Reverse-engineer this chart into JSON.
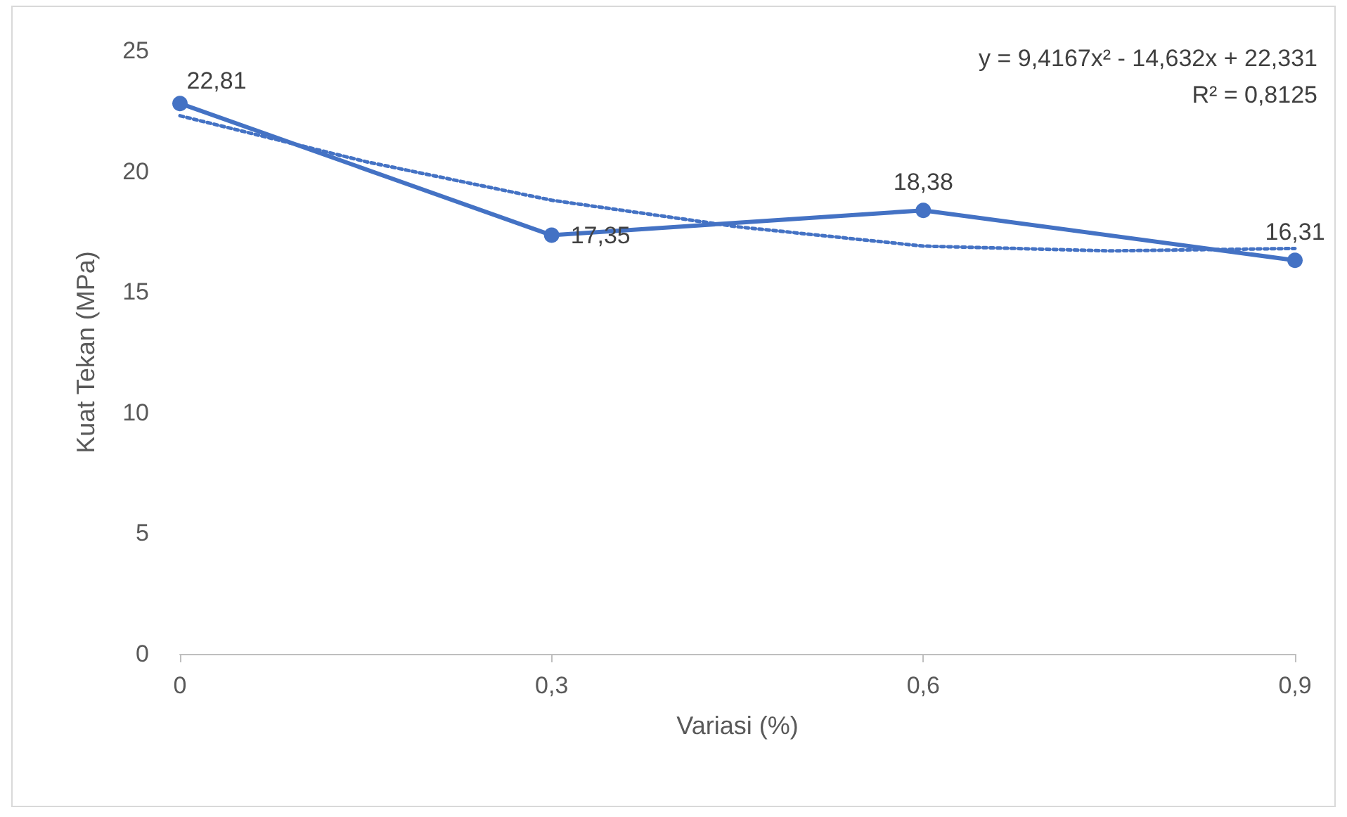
{
  "chart_data": {
    "type": "line",
    "xlabel": "Variasi (%)",
    "ylabel": "Kuat Tekan (MPa)",
    "x": [
      0,
      0.3,
      0.6,
      0.9
    ],
    "xlim": [
      0,
      0.9
    ],
    "xticks": [
      0,
      {
        "value": 0.3,
        "label": "0,3"
      },
      {
        "value": 0.6,
        "label": "0,6"
      },
      {
        "value": 0.9,
        "label": "0,9"
      }
    ],
    "ylim": [
      0,
      25
    ],
    "yticks": [
      0,
      5,
      10,
      15,
      20,
      25
    ],
    "series": [
      {
        "color": "#4472c4",
        "values": [
          22.81,
          17.35,
          18.38,
          16.31
        ],
        "value_labels": [
          "22,81",
          "17,35",
          "18,38",
          "16,31"
        ],
        "marker": "circle",
        "line_style": "solid"
      },
      {
        "type": "line",
        "color": "#4472c4",
        "x": [
          0,
          0.15,
          0.3,
          0.45,
          0.6,
          0.75,
          0.9
        ],
        "values": [
          22.3,
          20.4,
          18.8,
          17.7,
          16.9,
          16.7,
          16.8
        ],
        "marker": "none",
        "line_style": "dotted"
      }
    ],
    "annotations": [
      "y = 9,4167x² - 14,632x + 22,331",
      "R² = 0,8125"
    ],
    "grid": false
  }
}
